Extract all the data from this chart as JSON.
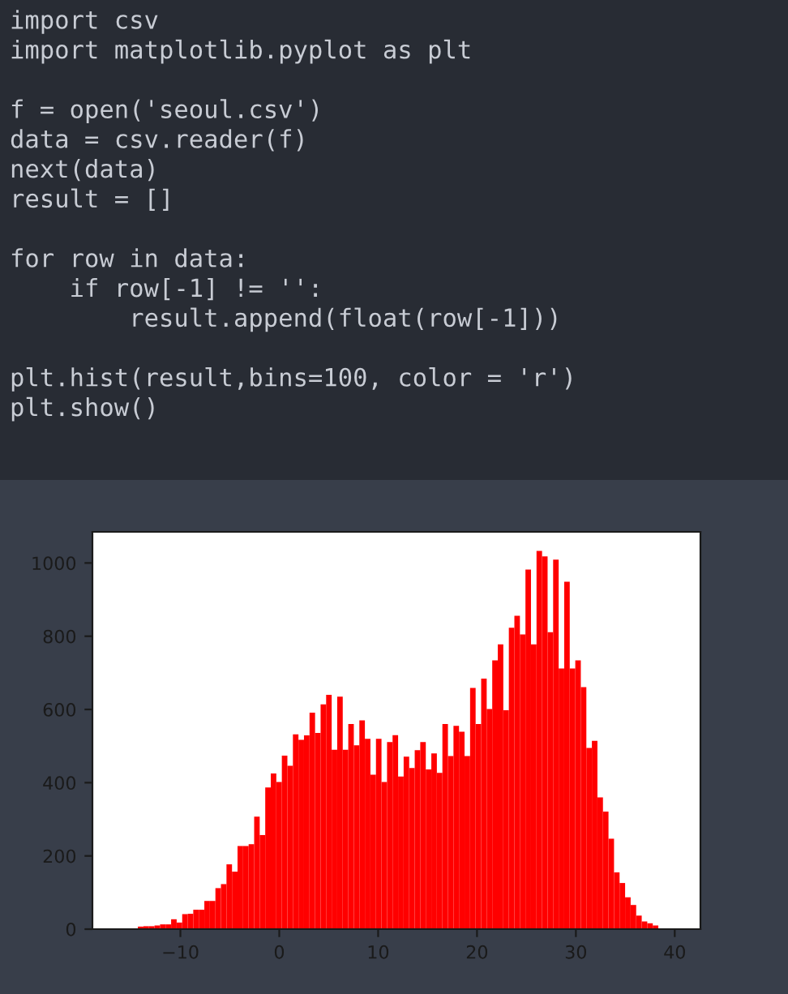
{
  "chart_data": {
    "type": "histogram",
    "annotations": [
      "import csv\nimport matplotlib.pyplot as plt\n\nf = open('seoul.csv')\ndata = csv.reader(f)\nnext(data)\nresult = []\n\nfor row in data:\n    if row[-1] != '':\n        result.append(float(row[-1]))\n\nplt.hist(result,bins=100, color = 'r')\nplt.show()"
    ],
    "bins": [
      -15.98,
      -15.42,
      -14.86,
      -14.3,
      -13.74,
      -13.18,
      -12.62,
      -12.06,
      -11.5,
      -10.94,
      -10.38,
      -9.82,
      -9.26,
      -8.7,
      -8.14,
      -7.58,
      -7.02,
      -6.46,
      -5.9,
      -5.34,
      -4.78,
      -4.22,
      -3.66,
      -3.1,
      -2.54,
      -1.98,
      -1.42,
      -0.86,
      -0.3,
      0.26,
      0.82,
      1.38,
      1.94,
      2.5,
      3.06,
      3.62,
      4.18,
      4.74,
      5.3,
      5.86,
      6.42,
      6.98,
      7.54,
      8.1,
      8.66,
      9.22,
      9.78,
      10.34,
      10.9,
      11.46,
      12.02,
      12.58,
      13.14,
      13.7,
      14.26,
      14.82,
      15.38,
      15.94,
      16.5,
      17.06,
      17.62,
      18.18,
      18.74,
      19.3,
      19.86,
      20.42,
      20.98,
      21.54,
      22.1,
      22.66,
      23.22,
      23.78,
      24.34,
      24.9,
      25.46,
      26.02,
      26.58,
      27.14,
      27.7,
      28.26,
      28.82,
      29.38,
      29.94,
      30.5,
      31.06,
      31.62,
      32.18,
      32.74,
      33.3,
      33.86,
      34.42,
      34.98,
      35.54,
      36.1,
      36.66,
      37.22,
      37.78,
      38.34,
      38.9,
      39.46
    ],
    "values": [
      null,
      null,
      null,
      7,
      8,
      8,
      10,
      13,
      13,
      27,
      18,
      41,
      42,
      53,
      53,
      77,
      77,
      112,
      123,
      177,
      157,
      227,
      227,
      232,
      307,
      257,
      387,
      425,
      402,
      474,
      446,
      532,
      517,
      529,
      591,
      536,
      614,
      640,
      490,
      635,
      490,
      560,
      502,
      570,
      520,
      422,
      520,
      402,
      511,
      530,
      417,
      471,
      440,
      489,
      511,
      436,
      480,
      427,
      560,
      473,
      555,
      539,
      473,
      659,
      560,
      684,
      601,
      734,
      778,
      598,
      823,
      856,
      805,
      982,
      778,
      1033,
      1018,
      811,
      1009,
      712,
      949,
      712,
      734,
      661,
      495,
      514,
      360,
      321,
      247,
      155,
      126,
      87,
      66,
      37,
      21,
      16,
      10,
      null,
      null
    ],
    "color": "#ff0000",
    "xlim": [
      -18.9,
      42.6
    ],
    "xticks": [
      {
        "value": -10,
        "label": "−10"
      },
      0,
      10,
      20,
      30,
      40
    ],
    "ylim": [
      0,
      1085
    ],
    "yticks": [
      0,
      200,
      400,
      600,
      800,
      1000
    ],
    "grid": false
  }
}
